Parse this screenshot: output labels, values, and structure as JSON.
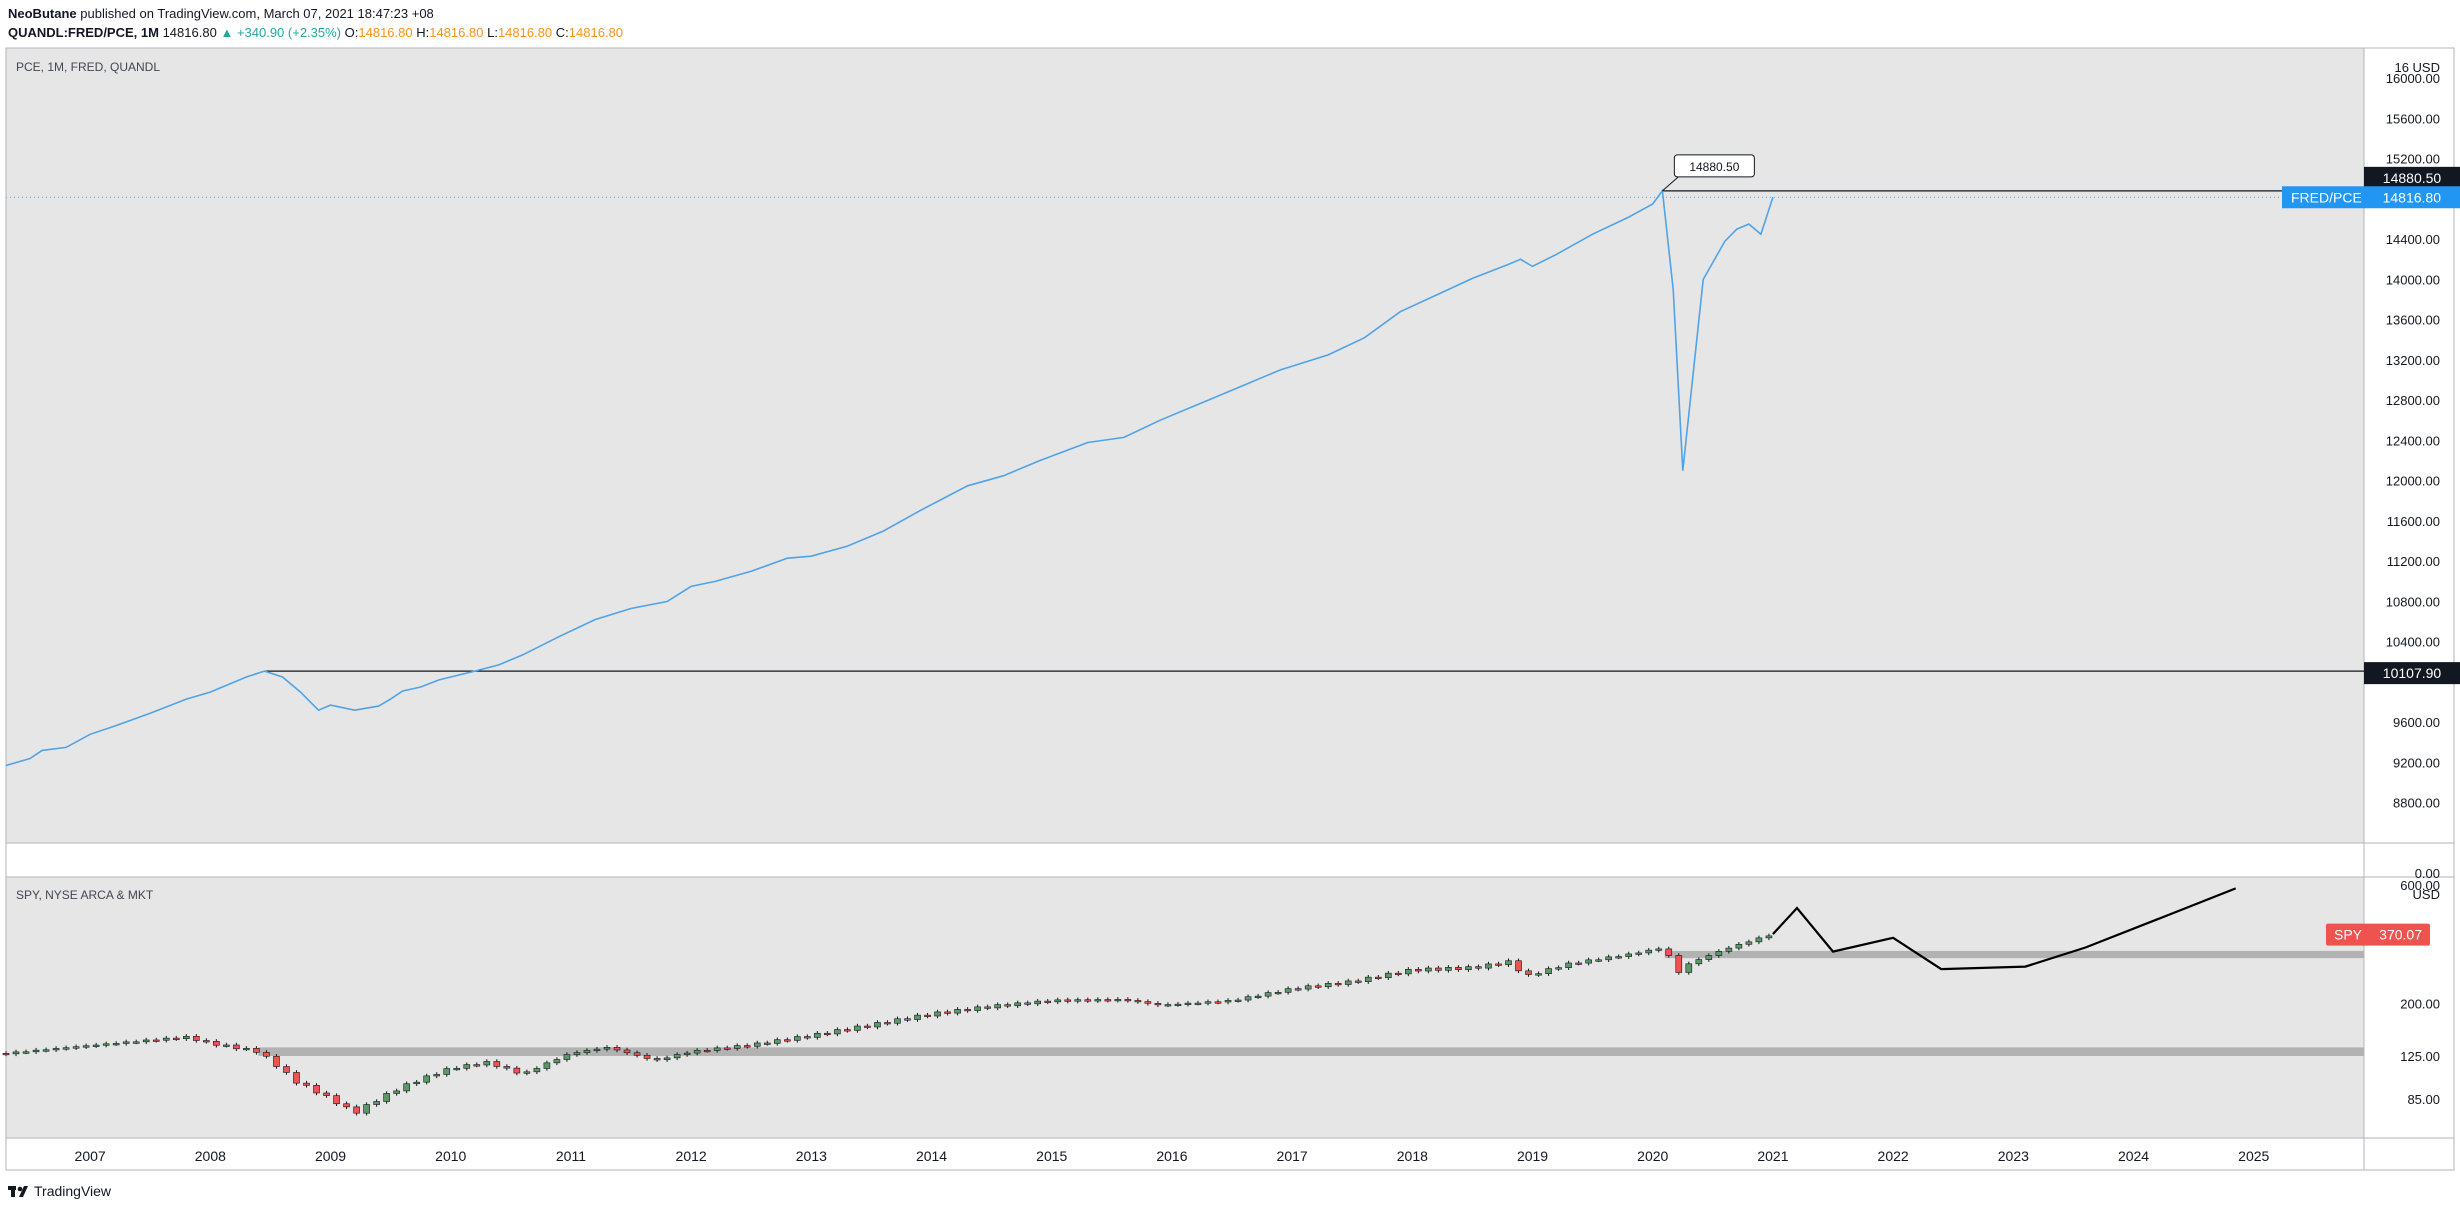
{
  "header": {
    "author": "NeoButane",
    "published": "published on TradingView.com, March 07, 2021 18:47:23 +08",
    "symbol": "QUANDL:FRED/PCE, 1M",
    "last": "14816.80",
    "change": "+340.90 (+2.35%)",
    "o_label": "O:",
    "o_value": "14816.80",
    "h_label": "H:",
    "h_value": "14816.80",
    "l_label": "L:",
    "l_value": "14816.80",
    "c_label": "C:",
    "c_value": "14816.80"
  },
  "footer": {
    "brand": "TradingView"
  },
  "colors": {
    "pce_line": "#4fa3e8",
    "up": "#26a69a",
    "down": "#ef5350",
    "label_blue": "#2196f3",
    "label_red": "#ef5350",
    "label_dark": "#131722",
    "pane_bg": "#e6e6e6"
  },
  "chart_data": [
    {
      "type": "line",
      "pane_label": "PCE, 1M, FRED, QUANDL",
      "y_unit": "USD",
      "ylim": [
        8400,
        16300
      ],
      "y_ticks": [
        8800,
        9200,
        9600,
        10400,
        10800,
        11200,
        11600,
        12000,
        12400,
        12800,
        13200,
        13600,
        14000,
        14400,
        15200,
        15600,
        16000
      ],
      "y_tick_labels": [
        "8800.00",
        "9200.00",
        "9600.00",
        "10400.00",
        "10800.00",
        "11200.00",
        "11600.00",
        "12000.00",
        "12400.00",
        "12800.00",
        "13200.00",
        "13600.00",
        "14000.00",
        "14400.00",
        "15200.00",
        "15600.00",
        "16000.00"
      ],
      "y_top_label": "16 USD",
      "series": [
        {
          "x": [
            2006.3,
            2006.5,
            2006.6,
            2006.8,
            2007.0,
            2007.2,
            2007.5,
            2007.8,
            2008.0,
            2008.1,
            2008.3,
            2008.45,
            2008.6,
            2008.75,
            2008.9,
            2009.0,
            2009.2,
            2009.4,
            2009.5,
            2009.6,
            2009.75,
            2009.9,
            2010.0,
            2010.2,
            2010.4,
            2010.6,
            2010.9,
            2011.2,
            2011.5,
            2011.8,
            2012.0,
            2012.2,
            2012.5,
            2012.8,
            2013.0,
            2013.3,
            2013.6,
            2013.9,
            2014.3,
            2014.6,
            2014.9,
            2015.3,
            2015.6,
            2015.9,
            2016.3,
            2016.6,
            2016.9,
            2017.3,
            2017.6,
            2017.9,
            2018.3,
            2018.5,
            2018.8,
            2018.9,
            2019.0,
            2019.2,
            2019.5,
            2019.8,
            2020.0,
            2020.08,
            2020.17,
            2020.25,
            2020.42,
            2020.6,
            2020.7,
            2020.8,
            2020.9,
            2021.0
          ],
          "y": [
            9170,
            9240,
            9320,
            9350,
            9480,
            9560,
            9690,
            9830,
            9900,
            9950,
            10050,
            10107.9,
            10050,
            9900,
            9720,
            9770,
            9720,
            9760,
            9830,
            9910,
            9950,
            10020,
            10050,
            10107.9,
            10170,
            10270,
            10450,
            10620,
            10730,
            10800,
            10950,
            11000,
            11100,
            11230,
            11250,
            11350,
            11500,
            11700,
            11950,
            12050,
            12200,
            12380,
            12430,
            12600,
            12800,
            12950,
            13100,
            13250,
            13420,
            13680,
            13900,
            14010,
            14150,
            14200,
            14130,
            14250,
            14450,
            14620,
            14750,
            14880.5,
            13900,
            12100,
            14000,
            14380,
            14500,
            14550,
            14450,
            14816.8
          ],
          "color": "#4fa3e8"
        }
      ],
      "hlines": [
        14880.5,
        10107.9
      ],
      "label_tags": {
        "high": "14880.50",
        "low": "10107.90",
        "last_name": "FRED/PCE",
        "last_value": "14816.80"
      },
      "callout": {
        "x": 2020.08,
        "y": 14880.5,
        "text": "14880.50"
      }
    },
    {
      "type": "candlestick",
      "pane_label": "SPY, NYSE ARCA & MKT",
      "y_unit": "USD",
      "y_ticks": [
        85,
        125,
        200
      ],
      "y_tick_labels": [
        "85.00",
        "125.00",
        "200.00"
      ],
      "y_top_labels": [
        "0.00",
        "600.00"
      ],
      "ylim": [
        60,
        620
      ],
      "log_scale": true,
      "anchors": {
        "x": [
          2006.3,
          2007.8,
          2008.0,
          2008.4,
          2008.7,
          2009.0,
          2009.2,
          2009.6,
          2010.0,
          2010.3,
          2010.6,
          2011.0,
          2011.3,
          2011.7,
          2012.0,
          2012.5,
          2013.0,
          2013.5,
          2014.0,
          2014.5,
          2015.0,
          2015.6,
          2015.9,
          2016.5,
          2017.0,
          2017.5,
          2018.0,
          2018.5,
          2018.8,
          2018.95,
          2019.3,
          2019.8,
          2020.1,
          2020.2,
          2020.3,
          2020.6,
          2020.9,
          2021.0
        ],
        "y": [
          128,
          148,
          140,
          130,
          100,
          85,
          75,
          95,
          112,
          118,
          106,
          128,
          135,
          120,
          130,
          138,
          150,
          165,
          182,
          195,
          205,
          207,
          197,
          205,
          228,
          243,
          270,
          275,
          290,
          255,
          285,
          310,
          330,
          260,
          285,
          325,
          360,
          372
        ]
      },
      "last_tag": {
        "name": "SPY",
        "value": "370.07"
      },
      "zones": [
        {
          "y0": 125,
          "y1": 135
        },
        {
          "y0": 300,
          "y1": 320
        }
      ],
      "projection": {
        "x": [
          2021.0,
          2021.2,
          2021.5,
          2022.0,
          2022.4,
          2023.1,
          2023.6,
          2024.2,
          2024.85
        ],
        "y": [
          372,
          470,
          318,
          360,
          272,
          278,
          330,
          425,
          560
        ]
      }
    }
  ],
  "x_axis": {
    "ticks": [
      2007,
      2008,
      2009,
      2010,
      2011,
      2012,
      2013,
      2014,
      2015,
      2016,
      2017,
      2018,
      2019,
      2020,
      2021,
      2022,
      2023,
      2024,
      2025
    ],
    "labels": [
      "2007",
      "2008",
      "2009",
      "2010",
      "2011",
      "2012",
      "2013",
      "2014",
      "2015",
      "2016",
      "2017",
      "2018",
      "2019",
      "2020",
      "2021",
      "2022",
      "2023",
      "2024",
      "2025"
    ]
  }
}
